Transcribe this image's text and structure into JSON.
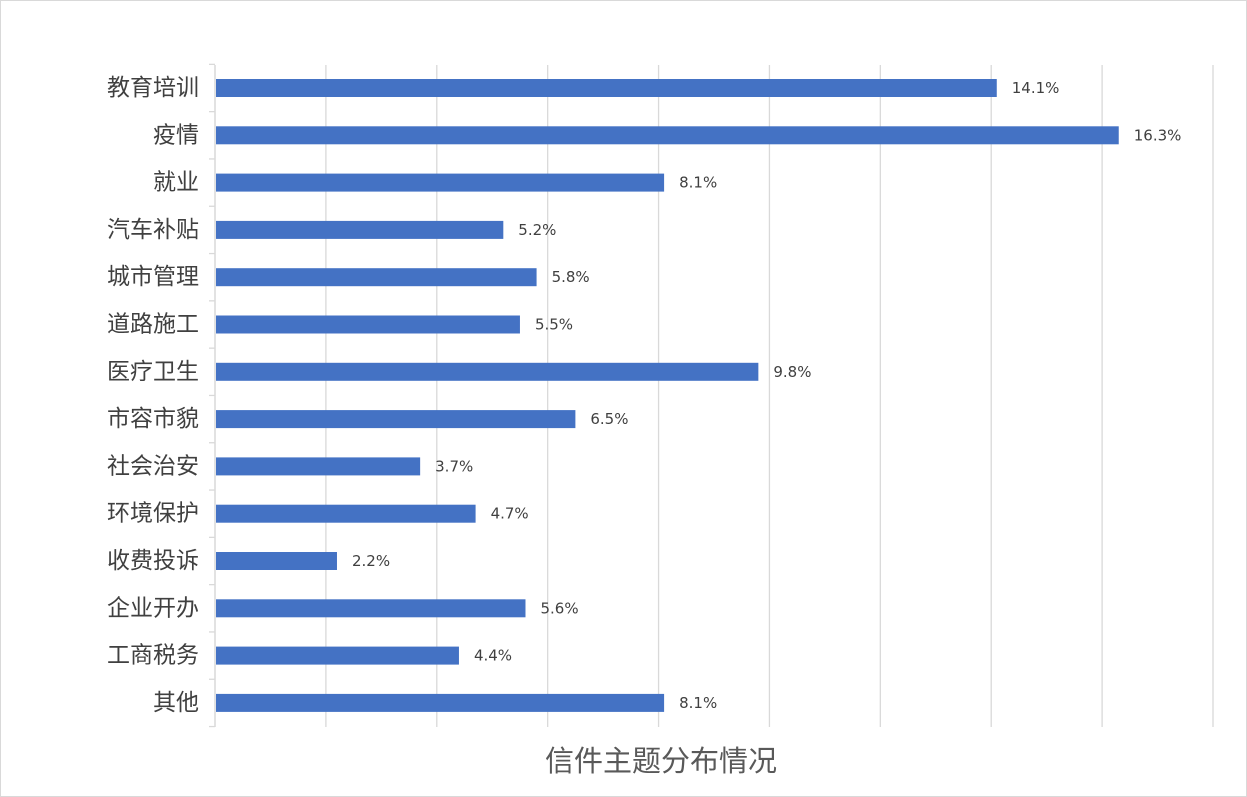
{
  "chart_data": {
    "type": "bar",
    "orientation": "horizontal",
    "title": "信件主题分布情况",
    "categories": [
      "教育培训",
      "疫情",
      "就业",
      "汽车补贴",
      "城市管理",
      "道路施工",
      "医疗卫生",
      "市容市貌",
      "社会治安",
      "环境保护",
      "收费投诉",
      "企业开办",
      "工商税务",
      "其他"
    ],
    "values": [
      14.1,
      16.3,
      8.1,
      5.2,
      5.8,
      5.5,
      9.8,
      6.5,
      3.7,
      4.7,
      2.2,
      5.6,
      4.4,
      8.1
    ],
    "value_labels": [
      "14.1%",
      "16.3%",
      "8.1%",
      "5.2%",
      "5.8%",
      "5.5%",
      "9.8%",
      "6.5%",
      "3.7%",
      "4.7%",
      "2.2%",
      "5.6%",
      "4.4%",
      "8.1%"
    ],
    "unit": "%",
    "xlim": [
      0,
      18
    ],
    "x_gridline_step": 2,
    "grid": true,
    "legend": "none",
    "bar_color": "#4472C4",
    "grid_color": "#d9d9d9"
  }
}
